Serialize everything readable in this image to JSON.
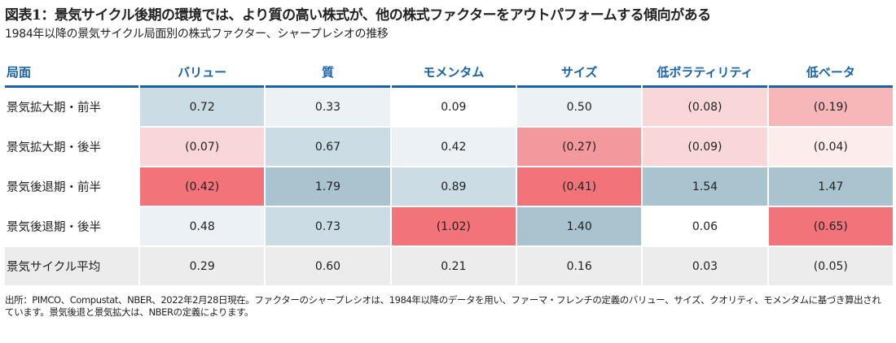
{
  "title": "図表1：景気サイクル後期の環境では、より質の高い株式が、他の株式ファクターをアウトパフォームする傾向がある",
  "subtitle": "1984年以降の景気サイクル局面別の株式ファクター、シャープレシオの推移",
  "chart_data": {
    "type": "heatmap",
    "corner_header": "局面",
    "columns": [
      "バリュー",
      "質",
      "モメンタム",
      "サイズ",
      "低ボラティリティ",
      "低ベータ"
    ],
    "rows": [
      {
        "label": "景気拡大期・前半",
        "values": [
          "0.72",
          "0.33",
          "0.09",
          "0.50",
          "(0.08)",
          "(0.19)"
        ],
        "colors": [
          "#ccdce4",
          "#ecf1f5",
          "#ffffff",
          "#ecf1f5",
          "#f9d6d7",
          "#f7b6b8"
        ]
      },
      {
        "label": "景気拡大期・後半",
        "values": [
          "(0.07)",
          "0.67",
          "0.42",
          "(0.27)",
          "(0.09)",
          "(0.04)"
        ],
        "colors": [
          "#f9d6d7",
          "#ccdce4",
          "#ecf1f5",
          "#f4999b",
          "#f9d6d7",
          "#fcecec"
        ]
      },
      {
        "label": "景気後退期・前半",
        "values": [
          "(0.42)",
          "1.79",
          "0.89",
          "(0.41)",
          "1.54",
          "1.47"
        ],
        "colors": [
          "#f2737a",
          "#a9c3cf",
          "#ccdce4",
          "#f2737a",
          "#a9c3cf",
          "#a9c3cf"
        ]
      },
      {
        "label": "景気後退期・後半",
        "values": [
          "0.48",
          "0.73",
          "(1.02)",
          "1.40",
          "0.06",
          "(0.65)"
        ],
        "colors": [
          "#ecf1f5",
          "#ccdce4",
          "#f2737a",
          "#a9c3cf",
          "#ffffff",
          "#f2737a"
        ]
      },
      {
        "label": "景気サイクル平均",
        "values": [
          "0.29",
          "0.60",
          "0.21",
          "0.16",
          "0.03",
          "(0.05)"
        ],
        "colors": [
          "#ececec",
          "#ececec",
          "#ececec",
          "#ececec",
          "#ececec",
          "#ececec"
        ],
        "average": true
      }
    ]
  },
  "note": "出所：PIMCO、Compustat、NBER、2022年2月28日現在。ファクターのシャープレシオは、1984年以降のデータを用い、ファーマ・フレンチの定義のバリュー、サイズ、クオリティ、モメンタムに基づき算出されています。景気後退と景気拡大は、NBERの定義によります。"
}
